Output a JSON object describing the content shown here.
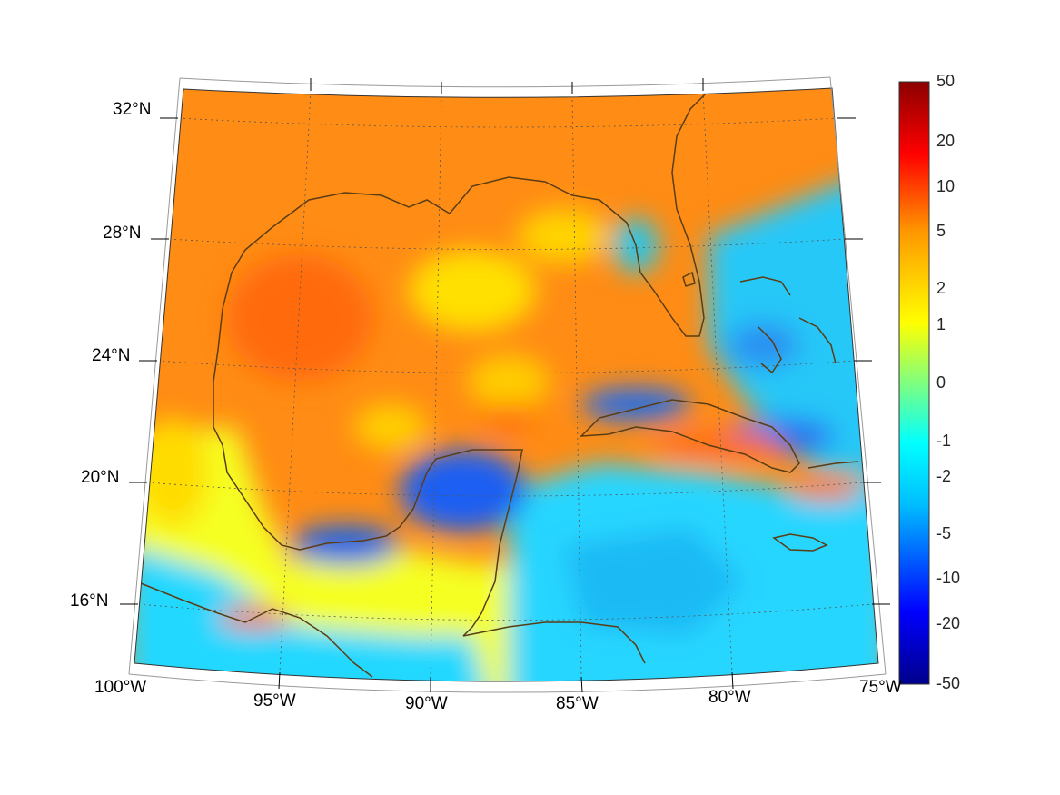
{
  "map": {
    "projection": "conic",
    "coastline_color": "#5a3d14",
    "background_color": "#ffffff",
    "colormap": "jet",
    "colormap_colors": [
      "#00008b",
      "#0000ff",
      "#00bfff",
      "#00ffff",
      "#7fff7f",
      "#ffff00",
      "#ff9900",
      "#ff0000",
      "#8b0000"
    ],
    "latitude_labels": [
      "32°N",
      "28°N",
      "24°N",
      "20°N",
      "16°N"
    ],
    "longitude_labels": [
      "100°W",
      "95°W",
      "90°W",
      "85°W",
      "80°W",
      "75°W"
    ],
    "extent": {
      "lon": [
        -100,
        -75
      ],
      "lat": [
        14,
        33
      ]
    }
  },
  "colorbar": {
    "tick_labels": [
      "50",
      "20",
      "10",
      "5",
      "2",
      "1",
      "0",
      "-1",
      "-2",
      "-5",
      "-10",
      "-20",
      "-50"
    ]
  }
}
